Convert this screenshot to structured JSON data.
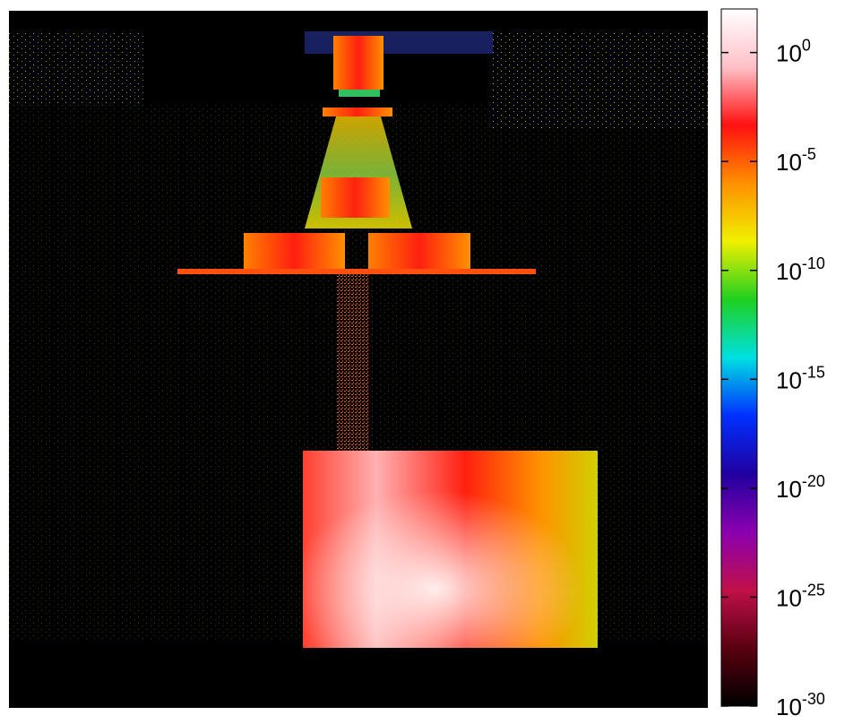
{
  "chart_data": {
    "type": "heatmap",
    "colorbar": {
      "log": true,
      "clim": [
        1e-30,
        100
      ],
      "colormap": [
        "#000000",
        "#5a0010",
        "#c0104a",
        "#8a00b0",
        "#2000a0",
        "#0030ff",
        "#00e0e0",
        "#20d020",
        "#f0f000",
        "#ff9000",
        "#ff1010",
        "#ffc0c8",
        "#ffffff"
      ],
      "ticks": [
        {
          "value": 1,
          "label": {
            "base": "10",
            "exponent": "0"
          }
        },
        {
          "value": 1e-05,
          "label": {
            "base": "10",
            "exponent": "-5"
          }
        },
        {
          "value": 1e-10,
          "label": {
            "base": "10",
            "exponent": "-10"
          }
        },
        {
          "value": 1e-15,
          "label": {
            "base": "10",
            "exponent": "-15"
          }
        },
        {
          "value": 1e-20,
          "label": {
            "base": "10",
            "exponent": "-20"
          }
        },
        {
          "value": 1e-25,
          "label": {
            "base": "10",
            "exponent": "-25"
          }
        },
        {
          "value": 1e-30,
          "label": {
            "base": "10",
            "exponent": "-30"
          }
        }
      ]
    }
  }
}
